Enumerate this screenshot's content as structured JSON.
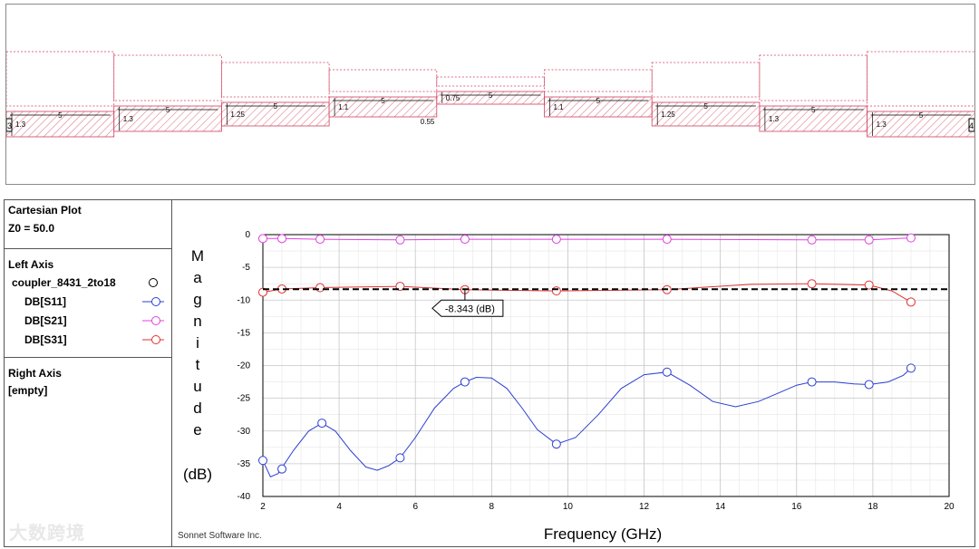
{
  "layout": {
    "sections": [
      {
        "length": "5",
        "width": "1.3"
      },
      {
        "length": "5",
        "width": "1.3"
      },
      {
        "length": "5",
        "width": "1.25"
      },
      {
        "length": "5",
        "width": "1.1"
      },
      {
        "length": "5",
        "width": "0.75"
      },
      {
        "length": "5",
        "width": "1.1"
      },
      {
        "length": "5",
        "width": "1.25"
      },
      {
        "length": "5",
        "width": "1.3"
      },
      {
        "length": "5",
        "width": "1.3"
      }
    ],
    "gap_label": "0.55",
    "port_labels": [
      "3",
      "4"
    ]
  },
  "legend": {
    "header_title": "Cartesian Plot",
    "z0": "Z0 = 50.0",
    "left_axis_title": "Left Axis",
    "dataset": "coupler_8431_2to18",
    "traces": [
      {
        "label": "DB[S11]",
        "color": "#2b3fd0"
      },
      {
        "label": "DB[S21]",
        "color": "#e040e0"
      },
      {
        "label": "DB[S31]",
        "color": "#e03030"
      }
    ],
    "right_axis_title": "Right Axis",
    "right_axis_value": "[empty]"
  },
  "chart_data": {
    "type": "line",
    "xlabel": "Frequency (GHz)",
    "ylabel_letters": [
      "M",
      "a",
      "g",
      "n",
      "i",
      "t",
      "u",
      "d",
      "e"
    ],
    "ylabel_unit": "(dB)",
    "xlim": [
      2,
      20
    ],
    "ylim": [
      -40,
      0
    ],
    "xticks": [
      2,
      4,
      6,
      8,
      10,
      12,
      14,
      16,
      18,
      20
    ],
    "yticks": [
      0,
      -5,
      -10,
      -15,
      -20,
      -25,
      -30,
      -35,
      -40
    ],
    "grid": true,
    "series": [
      {
        "name": "DB[S11]",
        "color": "#2b3fd0",
        "x": [
          2.0,
          2.2,
          2.4,
          2.8,
          3.2,
          3.55,
          3.9,
          4.3,
          4.7,
          5.0,
          5.3,
          5.6,
          6.0,
          6.5,
          7.0,
          7.3,
          7.6,
          8.0,
          8.4,
          8.8,
          9.2,
          9.7,
          10.2,
          10.8,
          11.4,
          12.0,
          12.6,
          13.2,
          13.8,
          14.4,
          15.0,
          15.6,
          16.0,
          16.4,
          17.0,
          17.5,
          17.9,
          18.4,
          18.8,
          19.0
        ],
        "y": [
          -34.5,
          -37.0,
          -36.5,
          -33.0,
          -30.0,
          -28.8,
          -30.0,
          -33.0,
          -35.5,
          -36.0,
          -35.3,
          -34.1,
          -31.0,
          -26.5,
          -23.5,
          -22.5,
          -21.8,
          -21.9,
          -23.5,
          -26.5,
          -29.8,
          -32.0,
          -31.0,
          -27.5,
          -23.5,
          -21.4,
          -21.0,
          -23.0,
          -25.5,
          -26.3,
          -25.5,
          -24.0,
          -23.0,
          -22.5,
          -22.5,
          -22.8,
          -22.9,
          -22.5,
          -21.5,
          -20.4
        ]
      },
      {
        "name": "DB[S21]",
        "color": "#e040e0",
        "x": [
          2.0,
          2.5,
          3.5,
          5.6,
          7.3,
          9.7,
          12.6,
          16.4,
          17.9,
          19.0
        ],
        "y": [
          -0.6,
          -0.6,
          -0.7,
          -0.8,
          -0.7,
          -0.7,
          -0.7,
          -0.8,
          -0.8,
          -0.5
        ]
      },
      {
        "name": "DB[S31]",
        "color": "#e03030",
        "x": [
          2.0,
          2.5,
          3.5,
          5.6,
          7.3,
          9.7,
          12.6,
          14.8,
          16.4,
          17.9,
          18.5,
          19.0
        ],
        "y": [
          -8.8,
          -8.3,
          -8.1,
          -7.9,
          -8.4,
          -8.6,
          -8.4,
          -7.6,
          -7.5,
          -7.7,
          -8.6,
          -10.3
        ]
      }
    ],
    "markers": {
      "DB[S11]": [
        [
          2.0,
          -34.5
        ],
        [
          2.5,
          -35.8
        ],
        [
          3.55,
          -28.8
        ],
        [
          5.6,
          -34.1
        ],
        [
          7.3,
          -22.5
        ],
        [
          9.7,
          -32.0
        ],
        [
          12.6,
          -21.0
        ],
        [
          16.4,
          -22.5
        ],
        [
          17.9,
          -22.9
        ],
        [
          19.0,
          -20.4
        ]
      ],
      "DB[S21]": [
        [
          2.0,
          -0.6
        ],
        [
          2.5,
          -0.6
        ],
        [
          3.5,
          -0.7
        ],
        [
          5.6,
          -0.8
        ],
        [
          7.3,
          -0.7
        ],
        [
          9.7,
          -0.7
        ],
        [
          12.6,
          -0.7
        ],
        [
          16.4,
          -0.8
        ],
        [
          17.9,
          -0.8
        ],
        [
          19.0,
          -0.5
        ]
      ],
      "DB[S31]": [
        [
          2.0,
          -8.8
        ],
        [
          2.5,
          -8.3
        ],
        [
          3.5,
          -8.1
        ],
        [
          5.6,
          -7.9
        ],
        [
          7.3,
          -8.4
        ],
        [
          9.7,
          -8.6
        ],
        [
          12.6,
          -8.4
        ],
        [
          16.4,
          -7.5
        ],
        [
          17.9,
          -7.7
        ],
        [
          19.0,
          -10.3
        ]
      ]
    },
    "reference_line": {
      "y": -8.343,
      "color": "#000000"
    },
    "annotation": {
      "text": "-8.343  (dB)",
      "x": 7.3,
      "y": -8.343
    }
  },
  "footer": {
    "credit": "Sonnet Software Inc."
  },
  "watermark": {
    "text": "大数跨境"
  }
}
